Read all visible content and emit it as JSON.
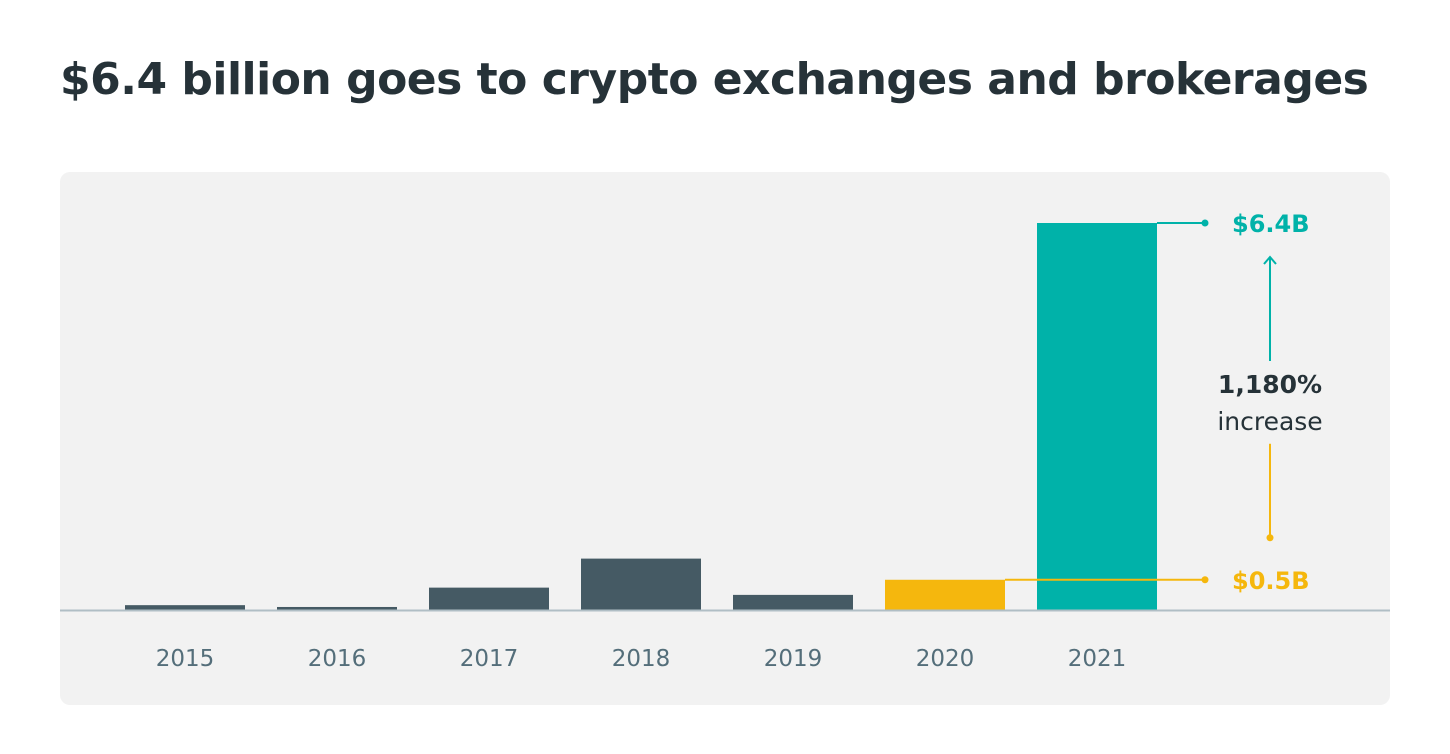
{
  "colors": {
    "background": "#ffffff",
    "panel": "#f2f2f2",
    "title_text": "#263238",
    "bar_default": "#455a64",
    "bar_2020": "#f5b70d",
    "bar_2021": "#00b2a9",
    "axis_line": "#b0bec5",
    "tick_text": "#546e7a"
  },
  "chart_data": {
    "type": "bar",
    "title": "$6.4 billion goes to crypto exchanges and brokerages",
    "xlabel": "",
    "ylabel": "",
    "unit": "billion USD",
    "categories": [
      "2015",
      "2016",
      "2017",
      "2018",
      "2019",
      "2020",
      "2021"
    ],
    "values": [
      0.08,
      0.05,
      0.37,
      0.85,
      0.25,
      0.5,
      6.4
    ],
    "bar_colors": [
      "#455a64",
      "#455a64",
      "#455a64",
      "#455a64",
      "#455a64",
      "#f5b70d",
      "#00b2a9"
    ],
    "ylim": [
      0,
      6.4
    ],
    "grid": false,
    "legend": "none",
    "callouts": [
      {
        "category": "2021",
        "value": 6.4,
        "label": "$6.4B",
        "color": "#00b2a9"
      },
      {
        "category": "2020",
        "value": 0.5,
        "label": "$0.5B",
        "color": "#f5b70d"
      }
    ],
    "annotation": {
      "value": "1,180%",
      "text": "increase"
    }
  }
}
